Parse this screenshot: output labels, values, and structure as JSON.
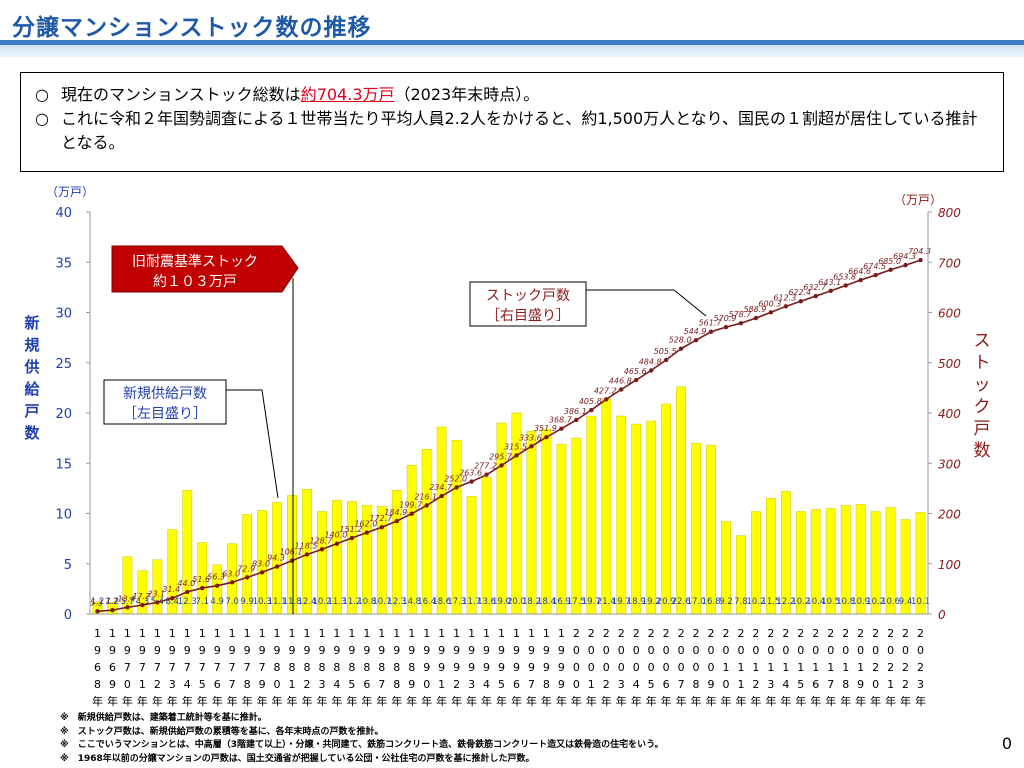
{
  "title": "分譲マンションストック数の推移",
  "info": {
    "line1_pre": "現在のマンションストック総数は",
    "line1_highlight": "約704.3万戸",
    "line1_post": "（2023年末時点）。",
    "line2": "これに令和２年国勢調査による１世帯当たり平均人員2.2人をかけると、約1,500万人となり、国民の１割超が居住している推計となる。",
    "bullet": "○"
  },
  "notes": [
    "※　新規供給戸数は、建築着工統計等を基に推計。",
    "※　ストック戸数は、新規供給戸数の累積等を基に、各年末時点の戸数を推計。",
    "※　ここでいうマンションとは、中高層（3階建て以上）・分譲・共同建て、鉄筋コンクリート造、鉄骨鉄筋コンクリート造又は鉄骨造の住宅をいう。",
    "※　1968年以前の分譲マンションの戸数は、国土交通省が把握している公団・公社住宅の戸数を基に推計した戸数。"
  ],
  "page_number": "0",
  "colors": {
    "bar": "#ffff00",
    "bar_edge": "#c8c800",
    "line": "#7a1c1c",
    "left_axis": "#1f3fb0",
    "right_axis": "#8b1a1a",
    "callout": "#c00000"
  },
  "chart_data": {
    "type": "bar+line",
    "categories": [
      "1968",
      "1969",
      "1970",
      "1971",
      "1972",
      "1973",
      "1974",
      "1975",
      "1976",
      "1977",
      "1978",
      "1979",
      "1980",
      "1981",
      "1982",
      "1983",
      "1984",
      "1985",
      "1986",
      "1987",
      "1988",
      "1989",
      "1990",
      "1991",
      "1992",
      "1993",
      "1994",
      "1995",
      "1996",
      "1997",
      "1998",
      "1999",
      "2000",
      "2001",
      "2002",
      "2003",
      "2004",
      "2005",
      "2006",
      "2007",
      "2008",
      "2009",
      "2010",
      "2011",
      "2012",
      "2013",
      "2014",
      "2015",
      "2016",
      "2017",
      "2018",
      "2019",
      "2020",
      "2021",
      "2022",
      "2023"
    ],
    "year_suffix": "年",
    "series": [
      {
        "name": "新規供給戸数",
        "axis": "left",
        "type": "bar",
        "values": [
          1.2,
          1.2,
          5.7,
          4.3,
          5.4,
          8.4,
          12.3,
          7.1,
          4.9,
          7.0,
          9.9,
          10.3,
          11.1,
          11.8,
          12.4,
          10.2,
          11.3,
          11.2,
          10.8,
          10.7,
          12.3,
          14.8,
          16.4,
          18.6,
          17.3,
          11.7,
          13.6,
          19.0,
          20.0,
          18.2,
          18.4,
          16.9,
          17.5,
          19.7,
          21.4,
          19.7,
          18.9,
          19.2,
          20.9,
          22.6,
          17.0,
          16.8,
          9.2,
          7.8,
          10.2,
          11.5,
          12.2,
          10.2,
          10.4,
          10.5,
          10.8,
          10.9,
          10.2,
          10.6,
          9.4,
          10.1
        ],
        "labels": [
          "1.2",
          "1.2",
          "5.7",
          "4.3",
          "5.4",
          "8.4",
          "12.3",
          "7.1",
          "4.9",
          "7.0",
          "9.9",
          "10.3",
          "11.1",
          "11.8",
          "12.4",
          "10.2",
          "11.3",
          "11.2",
          "10.8",
          "10.7",
          "12.3",
          "14.8",
          "16.4",
          "18.6",
          "17.3",
          "11.7",
          "13.6",
          "19.0",
          "20.0",
          "18.2",
          "18.4",
          "16.9",
          "17.5",
          "19.7",
          "21.4",
          "19.7",
          "18.9",
          "19.2",
          "20.9",
          "22.6",
          "17.0",
          "16.8",
          "9.2",
          "7.8",
          "10.2",
          "11.5",
          "12.2",
          "10.2",
          "10.4",
          "10.5",
          "10.8",
          "10.9",
          "10.2",
          "10.6",
          "9.4",
          "10.1"
        ]
      },
      {
        "name": "ストック戸数",
        "axis": "right",
        "type": "line",
        "values": [
          5.3,
          7.7,
          13.4,
          17.7,
          23.1,
          31.4,
          44.0,
          51.6,
          56.3,
          63.0,
          72.9,
          83.0,
          94.3,
          106.1,
          118.5,
          128.7,
          140.0,
          151.2,
          162.0,
          172.7,
          184.9,
          199.7,
          216.1,
          234.7,
          252.0,
          263.6,
          277.2,
          295.7,
          315.5,
          333.6,
          351.9,
          368.7,
          386.1,
          405.8,
          427.2,
          446.8,
          465.6,
          484.8,
          505.5,
          528.0,
          544.9,
          561.7,
          570.9,
          578.7,
          588.9,
          600.3,
          612.3,
          622.4,
          632.7,
          643.1,
          653.8,
          664.6,
          674.5,
          685.0,
          694.3,
          704.3
        ],
        "labels": [
          "5.3",
          "7.7",
          "13.4",
          "17.7",
          "23.1",
          "31.4",
          "44.0",
          "51.6",
          "56.3",
          "63.0",
          "72.9",
          "83.0",
          "94.3",
          "106.1",
          "118.5",
          "128.7",
          "140.0",
          "151.2",
          "162.0",
          "172.7",
          "184.9",
          "199.7",
          "216.1",
          "234.7",
          "252.0",
          "263.6",
          "277.2",
          "295.7",
          "315.5",
          "333.6",
          "351.9",
          "368.7",
          "386.1",
          "405.8",
          "427.2",
          "446.8",
          "465.6",
          "484.8",
          "505.5",
          "528.0",
          "544.9",
          "561.7",
          "570.9",
          "578.7",
          "588.9",
          "600.3",
          "612.3",
          "622.4",
          "632.7",
          "643.1",
          "653.8",
          "664.6",
          "674.5",
          "685.0",
          "694.3",
          "704.3"
        ]
      }
    ],
    "left_axis": {
      "unit": "（万戸）",
      "label": "新規供給戸数",
      "ylim": [
        0,
        40
      ],
      "ticks": [
        0,
        5,
        10,
        15,
        20,
        25,
        30,
        35,
        40
      ]
    },
    "right_axis": {
      "unit": "（万戸）",
      "label": "ストック戸数",
      "ylim": [
        0,
        800
      ],
      "ticks": [
        0,
        100,
        200,
        300,
        400,
        500,
        600,
        700,
        800
      ]
    },
    "callouts": {
      "old_standard_line1": "旧耐震基準ストック",
      "old_standard_line2": "約１０３万戸",
      "stock_line1": "ストック戸数",
      "stock_line2": "［右目盛り］",
      "supply_line1": "新規供給戸数",
      "supply_line2": "［左目盛り］"
    }
  }
}
